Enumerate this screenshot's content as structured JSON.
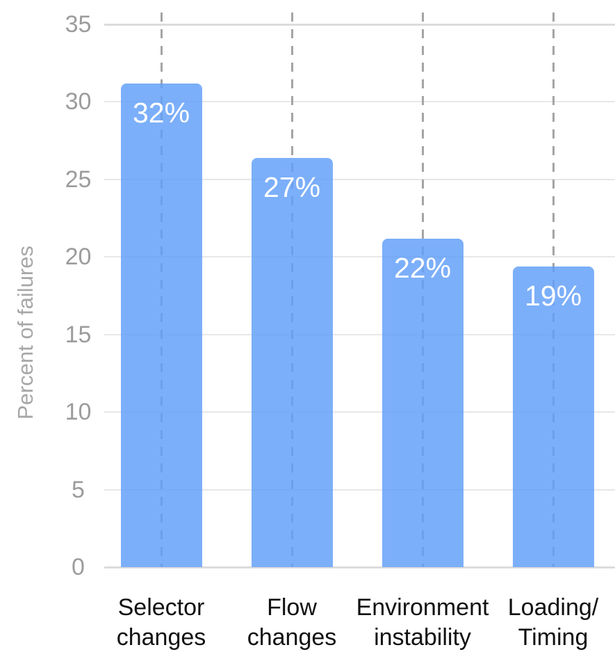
{
  "colors": {
    "bar_fill": "#7fb1f9",
    "bar_label_text": "#ffffff",
    "horizontal_gridline": "#e7e7e7",
    "axis_edge_line": "#dcdcdc",
    "vertical_dashed_gridline": "#a4a4a4",
    "ytick_text": "#9c9c9c",
    "xlabel_text": "#111111",
    "y_axis_title_text": "#a7a7a7",
    "background": "#ffffff"
  },
  "chart_data": {
    "type": "bar",
    "title": "",
    "xlabel": "",
    "ylabel": "Percent of failures",
    "ylim": [
      0,
      35
    ],
    "yticks": [
      0,
      5,
      10,
      15,
      20,
      25,
      30,
      35
    ],
    "grid": "horizontal solid lines every 5 units; vertical dashed line at each bar center; no legend",
    "categories": [
      "Selector changes",
      "Flow changes",
      "Environment instability",
      "Loading/Timing"
    ],
    "category_lines": [
      [
        "Selector",
        "changes"
      ],
      [
        "Flow",
        "changes"
      ],
      [
        "Environment",
        "instability"
      ],
      [
        "Loading/",
        "Timing"
      ]
    ],
    "values": [
      32,
      27,
      22,
      19
    ],
    "data_labels": [
      "32%",
      "27%",
      "22%",
      "19%"
    ],
    "bar_tops_axis_units_estimated": [
      31.2,
      26.4,
      21.2,
      19.4
    ]
  }
}
